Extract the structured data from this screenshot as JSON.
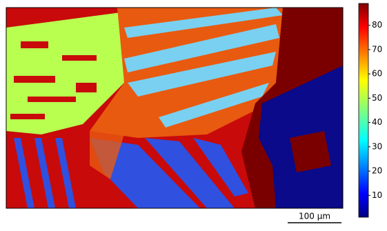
{
  "colorbar": {
    "clim": [
      1,
      89
    ],
    "ticks": [
      10,
      20,
      30,
      40,
      50,
      60,
      70,
      80
    ]
  },
  "scale_bar": {
    "label": "100 µm"
  }
}
